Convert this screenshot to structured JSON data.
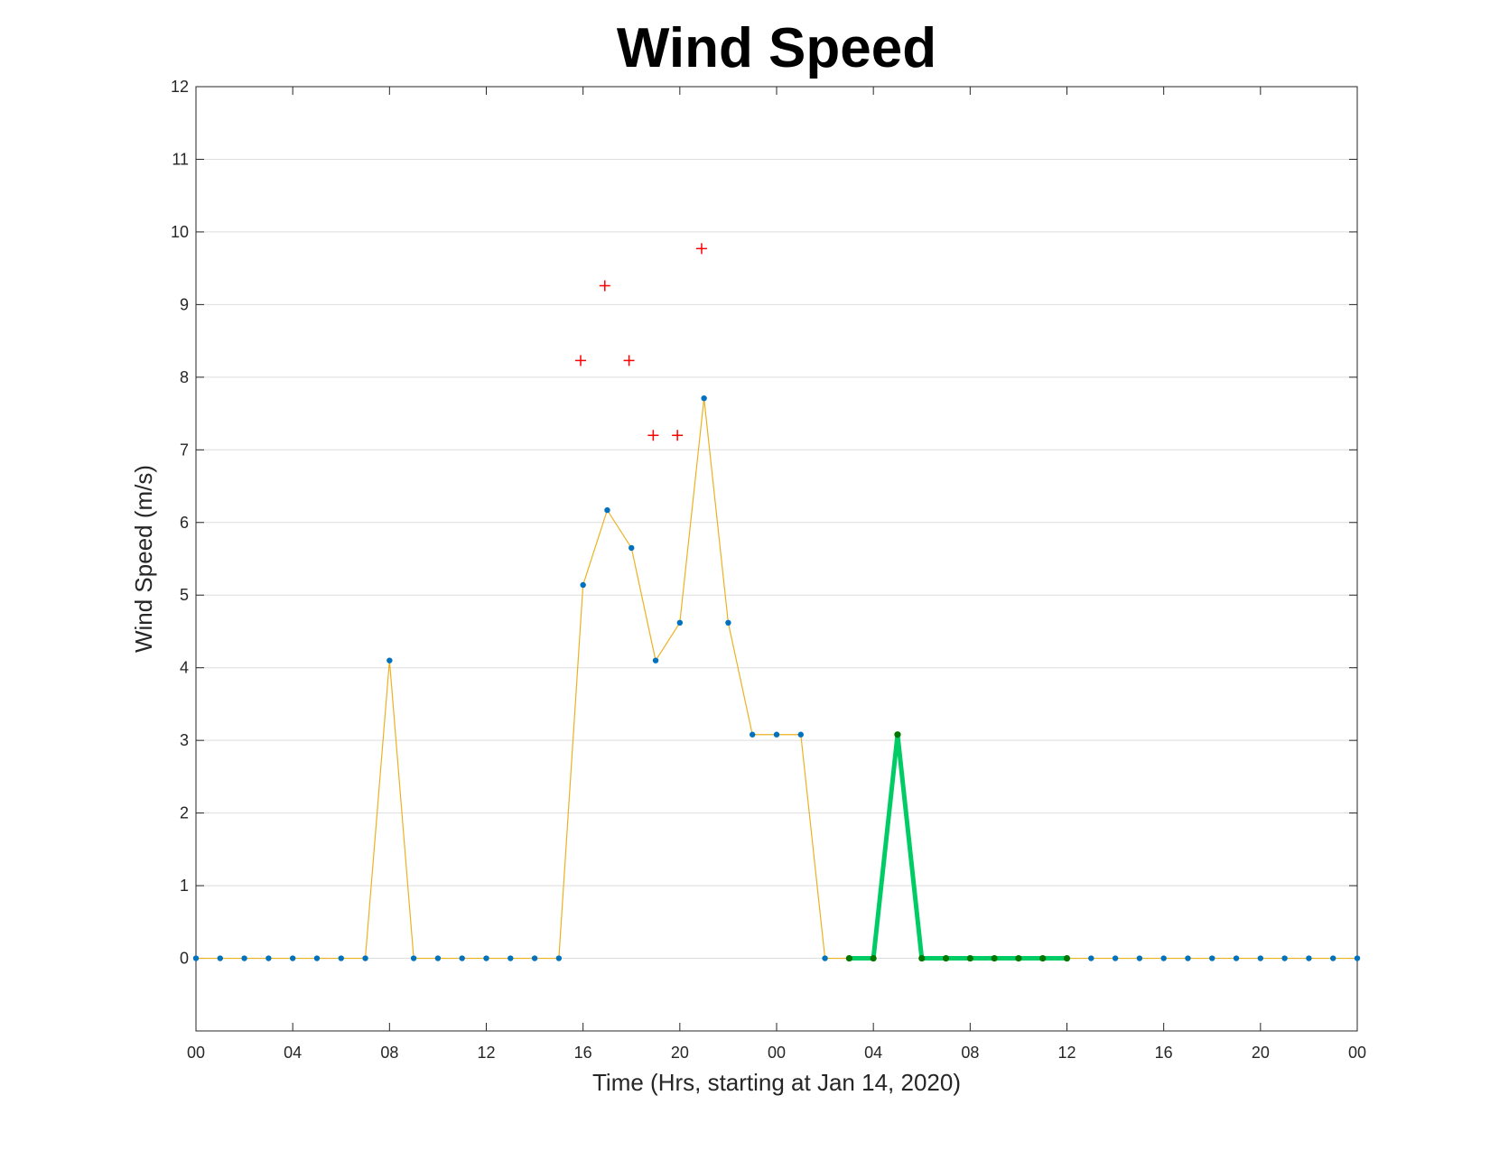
{
  "chart_data": {
    "type": "line",
    "title": "Wind Speed",
    "xlabel": "Time (Hrs, starting at Jan 14, 2020)",
    "ylabel": "Wind Speed (m/s)",
    "x_unit": "hours",
    "xlim": [
      0,
      48
    ],
    "ylim": [
      -1,
      12
    ],
    "x_tick_values": [
      0,
      4,
      8,
      12,
      16,
      20,
      24,
      28,
      32,
      36,
      40,
      44,
      48
    ],
    "x_tick_labels": [
      "00",
      "04",
      "08",
      "12",
      "16",
      "20",
      "00",
      "04",
      "08",
      "12",
      "16",
      "20",
      "00"
    ],
    "y_tick_values": [
      0,
      1,
      2,
      3,
      4,
      5,
      6,
      7,
      8,
      9,
      10,
      11,
      12
    ],
    "y_tick_labels": [
      "0",
      "1",
      "2",
      "3",
      "4",
      "5",
      "6",
      "7",
      "8",
      "9",
      "10",
      "11",
      "12"
    ],
    "grid": "horizontal",
    "series": [
      {
        "style": "line-with-dots",
        "line_color": "#EDB120",
        "marker_color": "#0072BD",
        "x": [
          0,
          1,
          2,
          3,
          4,
          5,
          6,
          7,
          8,
          9,
          10,
          11,
          12,
          13,
          14,
          15,
          16,
          17,
          18,
          19,
          20,
          21,
          22,
          23,
          24,
          25,
          26,
          27,
          28,
          29,
          30,
          31,
          32,
          33,
          34,
          35,
          36,
          37,
          38,
          39,
          40,
          41,
          42,
          43,
          44,
          45,
          46,
          47,
          48
        ],
        "y": [
          0,
          0,
          0,
          0,
          0,
          0,
          0,
          0,
          4.1,
          0,
          0,
          0,
          0,
          0,
          0,
          0,
          5.14,
          6.17,
          5.65,
          4.1,
          4.62,
          7.71,
          4.62,
          3.08,
          3.08,
          3.08,
          0,
          0,
          0,
          3.08,
          0,
          0,
          0,
          0,
          0,
          0,
          0,
          0,
          0,
          0,
          0,
          0,
          0,
          0,
          0,
          0,
          0,
          0,
          0
        ]
      },
      {
        "style": "thick-line-with-dots",
        "line_color": "#00CC66",
        "marker_color": "#007700",
        "x": [
          27,
          28,
          29,
          30,
          31,
          32,
          33,
          34,
          35,
          36
        ],
        "y": [
          0,
          0,
          3.08,
          0,
          0,
          0,
          0,
          0,
          0,
          0
        ]
      },
      {
        "style": "plus-markers",
        "marker_color": "#FF0000",
        "x": [
          15.9,
          16.9,
          17.9,
          18.9,
          19.9,
          20.9
        ],
        "y": [
          8.23,
          9.26,
          8.23,
          7.2,
          7.2,
          9.77
        ]
      }
    ]
  }
}
